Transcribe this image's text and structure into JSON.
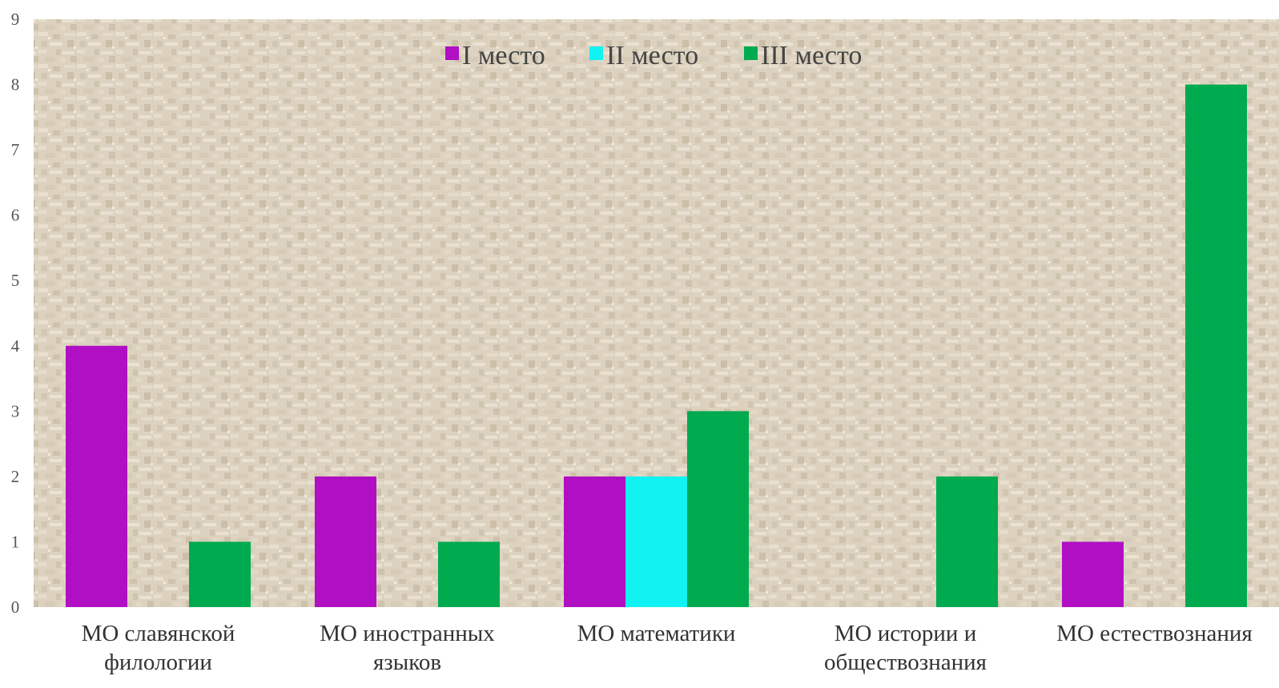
{
  "chart_data": {
    "type": "bar",
    "categories": [
      [
        "МО славянской",
        "филологии"
      ],
      [
        "МО иностранных",
        "языков"
      ],
      [
        "МО математики"
      ],
      [
        "МО истории и",
        "обществознания"
      ],
      [
        "МО естествознания"
      ]
    ],
    "series": [
      {
        "name": "I место",
        "color": "#B00FC4",
        "values": [
          4,
          2,
          2,
          0,
          1
        ]
      },
      {
        "name": "II место",
        "color": "#11F3F3",
        "values": [
          0,
          0,
          2,
          0,
          0
        ]
      },
      {
        "name": "III место",
        "color": "#00AA4F",
        "values": [
          1,
          1,
          3,
          2,
          8
        ]
      }
    ],
    "ylim": [
      0,
      9
    ],
    "yticks": [
      0,
      1,
      2,
      3,
      4,
      5,
      6,
      7,
      8,
      9
    ],
    "grid": false,
    "legend_position": "top-center",
    "background": "parchment texture"
  }
}
